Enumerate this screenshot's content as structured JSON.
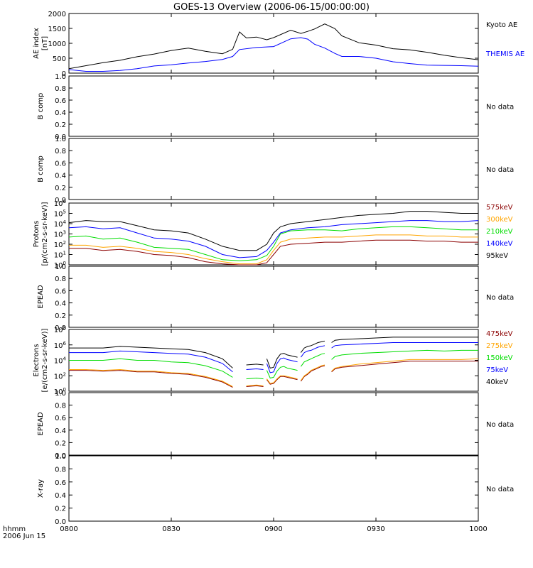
{
  "title": "GOES-13 Overview (2006-06-15/00:00:00)",
  "x_axis": {
    "corner_label_1": "hhmm",
    "corner_label_2": "2006 Jun 15",
    "ticks": [
      "0800",
      "0830",
      "0900",
      "0930",
      "1000"
    ]
  },
  "colors": {
    "black": "#000000",
    "blue": "#0000ff",
    "green": "#00dd00",
    "orange": "#ffa500",
    "darkred": "#8b0000"
  },
  "chart_data": [
    {
      "type": "line",
      "ylabel": [
        "AE index",
        "[nT]"
      ],
      "y_ticks": [
        "0",
        "500",
        "1000",
        "1500",
        "2000"
      ],
      "ylim": [
        0,
        2000
      ],
      "x_range": [
        "08:00",
        "10:00"
      ],
      "series": [
        {
          "name": "Kyoto AE",
          "color": "#000000",
          "x": [
            "08:00",
            "08:05",
            "08:10",
            "08:15",
            "08:20",
            "08:25",
            "08:30",
            "08:35",
            "08:40",
            "08:45",
            "08:48",
            "08:50",
            "08:52",
            "08:55",
            "08:58",
            "09:00",
            "09:05",
            "09:08",
            "09:10",
            "09:12",
            "09:15",
            "09:18",
            "09:20",
            "09:25",
            "09:30",
            "09:35",
            "09:40",
            "09:45",
            "09:50",
            "09:55",
            "10:00"
          ],
          "values": [
            150,
            250,
            350,
            430,
            550,
            640,
            760,
            840,
            730,
            650,
            800,
            1380,
            1180,
            1210,
            1120,
            1190,
            1440,
            1330,
            1400,
            1480,
            1650,
            1490,
            1250,
            1020,
            940,
            820,
            780,
            700,
            600,
            520,
            450
          ]
        },
        {
          "name": "THEMIS AE",
          "color": "#0000ff",
          "x": [
            "08:00",
            "08:05",
            "08:10",
            "08:15",
            "08:20",
            "08:25",
            "08:30",
            "08:35",
            "08:40",
            "08:45",
            "08:48",
            "08:50",
            "08:55",
            "09:00",
            "09:05",
            "09:08",
            "09:10",
            "09:12",
            "09:15",
            "09:18",
            "09:20",
            "09:25",
            "09:30",
            "09:35",
            "09:40",
            "09:45",
            "09:50",
            "09:55",
            "10:00"
          ],
          "values": [
            120,
            60,
            60,
            90,
            150,
            240,
            280,
            340,
            390,
            460,
            560,
            790,
            860,
            890,
            1150,
            1190,
            1140,
            970,
            840,
            660,
            560,
            560,
            500,
            380,
            320,
            270,
            260,
            250,
            230
          ]
        }
      ]
    },
    {
      "type": "line",
      "ylabel": [
        "B comp"
      ],
      "y_ticks": [
        "0.0",
        "0.2",
        "0.4",
        "0.6",
        "0.8",
        "1.0"
      ],
      "ylim": [
        0,
        1
      ],
      "note": "No data",
      "series": []
    },
    {
      "type": "line",
      "ylabel": [
        "B comp"
      ],
      "y_ticks": [
        "0.0",
        "0.2",
        "0.4",
        "0.6",
        "0.8",
        "1.0"
      ],
      "ylim": [
        0,
        1
      ],
      "note": "No data",
      "series": []
    },
    {
      "type": "line",
      "log_scale": true,
      "ylabel": [
        "Protons",
        "[p/(cm2-s-sr-keV)]"
      ],
      "y_ticks": [
        "0",
        "1",
        "2",
        "3",
        "4",
        "5",
        "6"
      ],
      "ylim_log10": [
        0,
        6
      ],
      "x": [
        "08:00",
        "08:05",
        "08:10",
        "08:15",
        "08:20",
        "08:25",
        "08:30",
        "08:35",
        "08:40",
        "08:45",
        "08:50",
        "08:55",
        "08:58",
        "09:00",
        "09:02",
        "09:05",
        "09:10",
        "09:15",
        "09:20",
        "09:25",
        "09:30",
        "09:35",
        "09:40",
        "09:45",
        "09:50",
        "09:55",
        "10:00"
      ],
      "series": [
        {
          "name": "575keV",
          "color": "#8b0000",
          "values": [
            1.6,
            1.6,
            1.4,
            1.5,
            1.3,
            1.0,
            0.9,
            0.7,
            0.3,
            0.1,
            0.0,
            0.0,
            0.2,
            1.0,
            1.8,
            2.0,
            2.1,
            2.2,
            2.2,
            2.3,
            2.4,
            2.4,
            2.4,
            2.3,
            2.3,
            2.2,
            2.2
          ]
        },
        {
          "name": "300keV",
          "color": "#ffa500",
          "values": [
            1.9,
            1.9,
            1.7,
            1.8,
            1.6,
            1.3,
            1.2,
            1.0,
            0.6,
            0.3,
            0.1,
            0.1,
            0.5,
            1.4,
            2.2,
            2.5,
            2.6,
            2.7,
            2.7,
            2.8,
            2.9,
            2.9,
            2.9,
            2.8,
            2.8,
            2.7,
            2.7
          ]
        },
        {
          "name": "210keV",
          "color": "#00dd00",
          "values": [
            2.7,
            2.8,
            2.5,
            2.6,
            2.2,
            1.7,
            1.6,
            1.5,
            1.0,
            0.5,
            0.4,
            0.5,
            0.9,
            1.8,
            3.0,
            3.3,
            3.4,
            3.4,
            3.3,
            3.5,
            3.6,
            3.7,
            3.7,
            3.6,
            3.5,
            3.4,
            3.4
          ]
        },
        {
          "name": "140keV",
          "color": "#0000ff",
          "values": [
            3.6,
            3.7,
            3.5,
            3.6,
            3.1,
            2.6,
            2.5,
            2.3,
            1.8,
            1.0,
            0.7,
            0.8,
            1.4,
            2.2,
            3.1,
            3.4,
            3.6,
            3.7,
            3.9,
            4.0,
            4.1,
            4.2,
            4.3,
            4.3,
            4.2,
            4.2,
            4.3
          ]
        },
        {
          "name": "95keV",
          "color": "#000000",
          "values": [
            4.1,
            4.3,
            4.2,
            4.2,
            3.8,
            3.4,
            3.3,
            3.1,
            2.5,
            1.8,
            1.4,
            1.4,
            2.0,
            3.1,
            3.7,
            4.0,
            4.2,
            4.4,
            4.6,
            4.8,
            4.9,
            5.0,
            5.2,
            5.2,
            5.1,
            5.0,
            5.0
          ]
        }
      ]
    },
    {
      "type": "line",
      "ylabel": [
        "EPEAD"
      ],
      "y_ticks": [
        "0.0",
        "0.2",
        "0.4",
        "0.6",
        "0.8",
        "1.0"
      ],
      "ylim": [
        0,
        1
      ],
      "note": "No data",
      "series": []
    },
    {
      "type": "line",
      "log_scale": true,
      "ylabel": [
        "Electrons",
        "[e/(cm2-s-sr-keV)]"
      ],
      "y_ticks": [
        "0",
        "2",
        "4",
        "6",
        "8"
      ],
      "ylim_log10": [
        0,
        8
      ],
      "segments": [
        {
          "x": [
            "08:00",
            "08:05",
            "08:10",
            "08:15",
            "08:20",
            "08:25",
            "08:30",
            "08:35",
            "08:40",
            "08:45",
            "08:48"
          ]
        },
        {
          "x": [
            "08:52",
            "08:55",
            "08:57"
          ]
        },
        {
          "x": [
            "08:58",
            "08:59",
            "09:00",
            "09:01",
            "09:02",
            "09:03",
            "09:04",
            "09:05",
            "09:06",
            "09:07"
          ]
        },
        {
          "x": [
            "09:08",
            "09:09",
            "09:10",
            "09:11",
            "09:12",
            "09:13",
            "09:14",
            "09:15"
          ]
        },
        {
          "x": [
            "09:17",
            "09:18",
            "09:20",
            "09:25",
            "09:30",
            "09:35",
            "09:40",
            "09:45",
            "09:50",
            "09:55",
            "10:00"
          ]
        }
      ],
      "series": [
        {
          "name": "475keV",
          "color": "#8b0000",
          "segments": [
            [
              2.7,
              2.7,
              2.6,
              2.7,
              2.5,
              2.5,
              2.3,
              2.2,
              1.8,
              1.2,
              0.5
            ],
            [
              0.6,
              0.7,
              0.6
            ],
            [
              1.5,
              0.9,
              1.0,
              1.5,
              1.9,
              1.9,
              1.8,
              1.7,
              1.6,
              1.5
            ],
            [
              1.3,
              1.9,
              2.2,
              2.6,
              2.8,
              3.0,
              3.2,
              3.3
            ],
            [
              2.5,
              2.9,
              3.1,
              3.3,
              3.5,
              3.7,
              3.9,
              3.9,
              3.9,
              3.9,
              3.9
            ]
          ]
        },
        {
          "name": "275keV",
          "color": "#ffa500",
          "segments": [
            [
              2.8,
              2.8,
              2.7,
              2.8,
              2.6,
              2.6,
              2.4,
              2.3,
              1.9,
              1.3,
              0.6
            ],
            [
              0.7,
              0.8,
              0.7
            ],
            [
              1.6,
              1.0,
              1.1,
              1.6,
              2.0,
              2.0,
              1.9,
              1.8,
              1.7,
              1.6
            ],
            [
              1.4,
              2.0,
              2.3,
              2.7,
              2.9,
              3.1,
              3.3,
              3.4
            ],
            [
              2.6,
              3.0,
              3.2,
              3.5,
              3.7,
              3.9,
              4.1,
              4.1,
              4.1,
              4.1,
              4.2
            ]
          ]
        },
        {
          "name": "150keV",
          "color": "#00dd00",
          "segments": [
            [
              4.0,
              4.0,
              4.0,
              4.2,
              4.0,
              4.0,
              3.8,
              3.7,
              3.3,
              2.6,
              1.8
            ],
            [
              1.6,
              1.7,
              1.6
            ],
            [
              2.7,
              1.7,
              1.8,
              2.6,
              3.1,
              3.2,
              3.0,
              2.9,
              2.8,
              2.7
            ],
            [
              3.2,
              3.8,
              4.0,
              4.2,
              4.4,
              4.6,
              4.8,
              4.9
            ],
            [
              4.1,
              4.5,
              4.7,
              4.9,
              5.0,
              5.1,
              5.2,
              5.3,
              5.2,
              5.3,
              5.3
            ]
          ]
        },
        {
          "name": "75keV",
          "color": "#0000ff",
          "segments": [
            [
              5.0,
              5.0,
              5.0,
              5.2,
              5.1,
              5.0,
              4.9,
              4.8,
              4.4,
              3.6,
              2.5
            ],
            [
              2.8,
              2.9,
              2.8
            ],
            [
              3.6,
              2.4,
              2.5,
              3.6,
              4.2,
              4.3,
              4.1,
              4.0,
              3.9,
              3.8
            ],
            [
              4.4,
              5.0,
              5.2,
              5.3,
              5.5,
              5.7,
              5.8,
              5.9
            ],
            [
              5.6,
              5.9,
              6.0,
              6.1,
              6.2,
              6.3,
              6.3,
              6.3,
              6.3,
              6.3,
              6.3
            ]
          ]
        },
        {
          "name": "40keV",
          "color": "#000000",
          "segments": [
            [
              5.6,
              5.6,
              5.6,
              5.8,
              5.7,
              5.6,
              5.5,
              5.4,
              5.0,
              4.2,
              3.0
            ],
            [
              3.4,
              3.5,
              3.4
            ],
            [
              4.2,
              3.0,
              3.1,
              4.2,
              4.8,
              4.9,
              4.7,
              4.6,
              4.5,
              4.4
            ],
            [
              5.0,
              5.6,
              5.8,
              5.9,
              6.1,
              6.3,
              6.4,
              6.5
            ],
            [
              6.3,
              6.6,
              6.7,
              6.8,
              6.9,
              7.0,
              7.0,
              7.0,
              7.0,
              7.0,
              7.0
            ]
          ]
        }
      ]
    },
    {
      "type": "line",
      "ylabel": [
        "EPEAD"
      ],
      "y_ticks": [
        "0.0",
        "0.2",
        "0.4",
        "0.6",
        "0.8",
        "1.0"
      ],
      "ylim": [
        0,
        1
      ],
      "note": "No data",
      "series": []
    },
    {
      "type": "line",
      "ylabel": [
        "X-ray"
      ],
      "y_ticks": [
        "0.0",
        "0.2",
        "0.4",
        "0.6",
        "0.8",
        "1.0"
      ],
      "ylim": [
        0,
        1
      ],
      "note": "No data",
      "series": []
    }
  ]
}
